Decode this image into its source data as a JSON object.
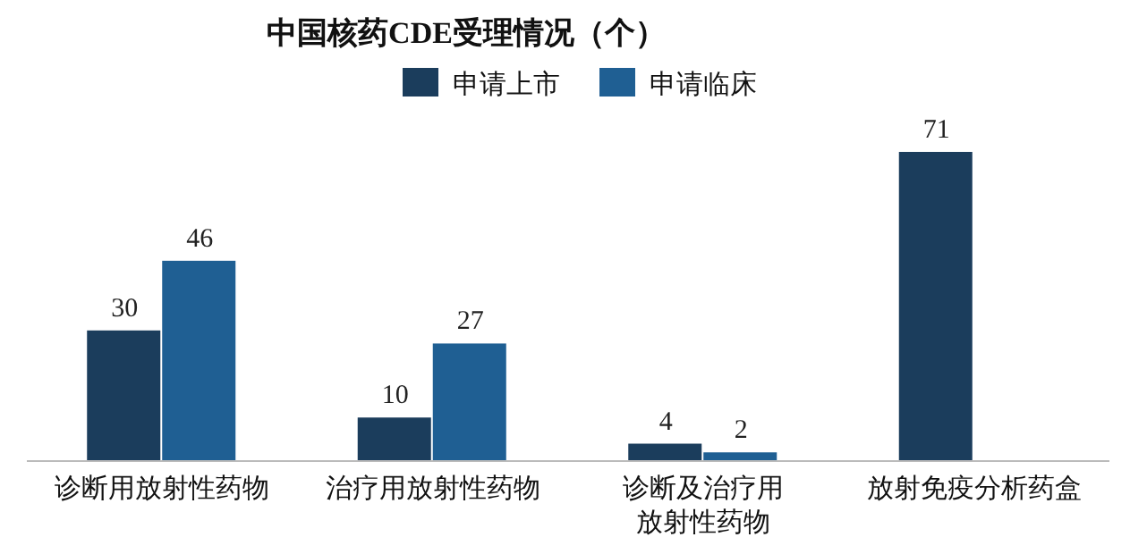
{
  "chart_data": {
    "type": "bar",
    "title": "中国核药CDE受理情况（个）",
    "categories": [
      "诊断用放射性药物",
      "治疗用放射性药物",
      "诊断及治疗用放射性药物",
      "放射免疫分析药盒"
    ],
    "series": [
      {
        "name": "申请上市",
        "color": "#1b3d5c",
        "values": [
          30,
          10,
          4,
          71
        ]
      },
      {
        "name": "申请临床",
        "color": "#1f5f93",
        "values": [
          46,
          27,
          2,
          null
        ]
      }
    ],
    "data_labels": true,
    "legend": "top"
  }
}
